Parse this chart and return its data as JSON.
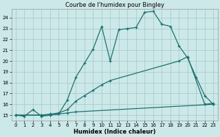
{
  "title": "Courbe de l'humidex pour Bingley",
  "xlabel": "Humidex (Indice chaleur)",
  "bg_color": "#cce8e8",
  "line_color": "#1a6e6e",
  "grid_color": "#aacccc",
  "xlim": [
    -0.5,
    23.5
  ],
  "ylim": [
    14.5,
    24.8
  ],
  "yticks": [
    15,
    16,
    17,
    18,
    19,
    20,
    21,
    22,
    23,
    24
  ],
  "xticks": [
    0,
    1,
    2,
    3,
    4,
    5,
    6,
    7,
    8,
    9,
    10,
    11,
    12,
    13,
    14,
    15,
    16,
    17,
    18,
    19,
    20,
    21,
    22,
    23
  ],
  "line1_x": [
    0,
    1,
    2,
    3,
    4,
    5,
    6,
    7,
    8,
    9,
    10,
    11,
    12,
    13,
    14,
    15,
    16,
    17,
    18,
    19,
    20,
    21,
    22,
    23
  ],
  "line1_y": [
    15.0,
    14.9,
    15.5,
    14.9,
    15.0,
    15.1,
    16.4,
    18.5,
    19.8,
    21.1,
    23.2,
    20.0,
    22.9,
    23.0,
    23.1,
    24.5,
    24.6,
    23.4,
    23.2,
    21.4,
    20.3,
    18.5,
    16.8,
    16.0
  ],
  "line2_x": [
    0,
    3,
    4,
    5,
    6,
    7,
    8,
    9,
    10,
    11,
    19,
    20,
    22,
    23
  ],
  "line2_y": [
    15.0,
    15.0,
    15.1,
    15.2,
    15.5,
    16.3,
    16.8,
    17.3,
    17.8,
    18.2,
    20.0,
    20.4,
    16.0,
    16.1
  ],
  "line3_x": [
    0,
    3,
    4,
    5,
    6,
    7,
    23
  ],
  "line3_y": [
    15.0,
    15.0,
    15.0,
    15.1,
    15.2,
    15.3,
    16.0
  ]
}
